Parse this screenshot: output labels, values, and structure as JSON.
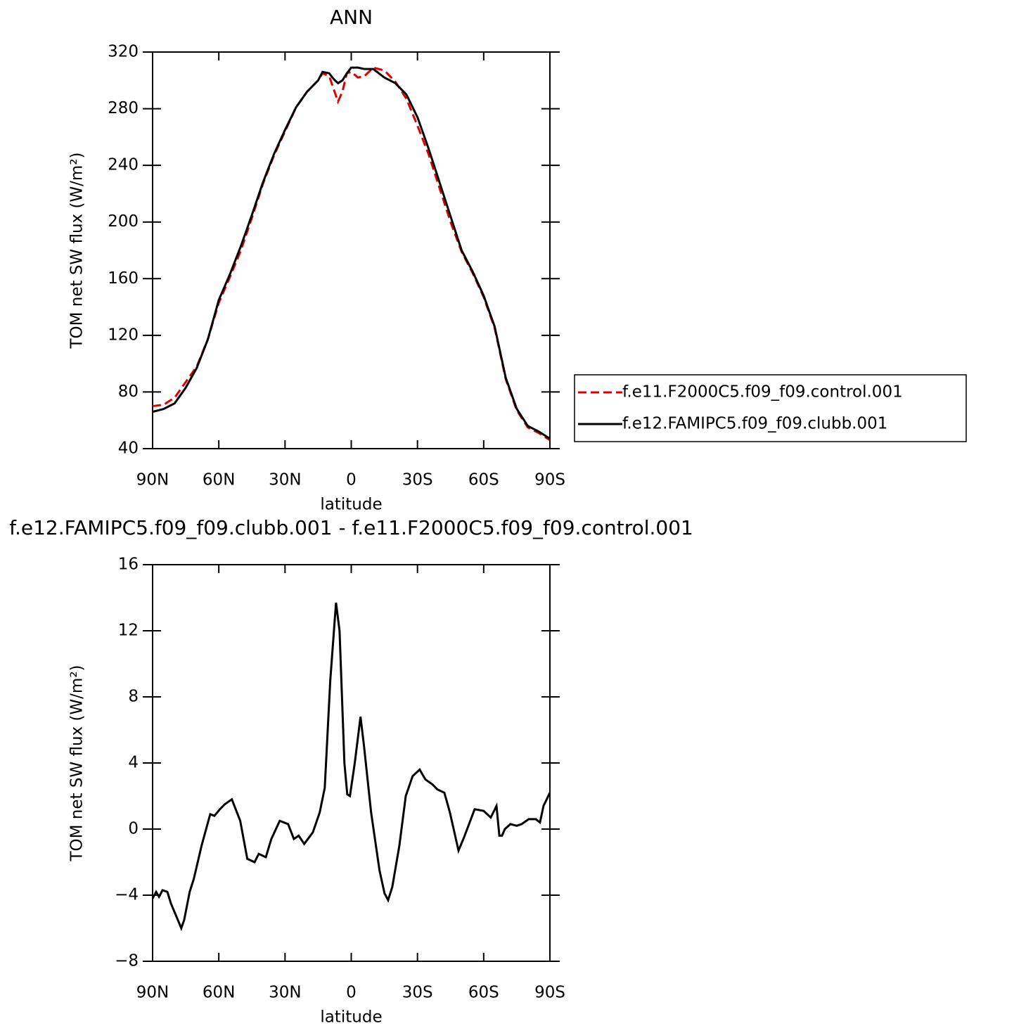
{
  "chart_data": [
    {
      "type": "line",
      "title": "ANN",
      "x_label": "latitude",
      "y_label": "TOM net SW flux (W/m²)",
      "x": [
        90,
        85,
        80,
        75,
        70,
        65,
        60,
        55,
        50,
        45,
        40,
        35,
        30,
        25,
        20,
        15,
        13,
        10,
        8,
        6,
        4,
        2,
        0,
        -3,
        -6,
        -10,
        -15,
        -20,
        -25,
        -30,
        -35,
        -40,
        -45,
        -50,
        -55,
        -60,
        -65,
        -70,
        -75,
        -80,
        -85,
        -90
      ],
      "series": [
        {
          "name": "f.e11.F2000C5.f09_f09.control.001",
          "color": "#e00000",
          "line_style": "dashed",
          "values": [
            70,
            71,
            76,
            87,
            98,
            117,
            143,
            161,
            180,
            203,
            227,
            247,
            264,
            281,
            292,
            300,
            305,
            303,
            294,
            285,
            292,
            305,
            306,
            302,
            303,
            309,
            307,
            299,
            287,
            268,
            248,
            224,
            200,
            179,
            164,
            147,
            125,
            89,
            67,
            55,
            51,
            46
          ]
        },
        {
          "name": "f.e12.FAMIPC5.f09_f09.clubb.001",
          "color": "#000000",
          "line_style": "solid",
          "values": [
            66,
            68,
            72,
            83,
            97,
            117,
            145,
            163,
            183,
            205,
            228,
            248,
            265,
            281,
            292,
            300,
            306,
            305,
            301,
            298,
            300,
            305,
            309,
            309,
            308,
            308,
            302,
            298,
            290,
            274,
            252,
            228,
            204,
            180,
            165,
            148,
            126,
            90,
            68,
            56,
            52,
            47
          ]
        }
      ],
      "xlim": [
        90,
        -90
      ],
      "xticks": [
        {
          "value": 90,
          "label": "90N"
        },
        {
          "value": 60,
          "label": "60N"
        },
        {
          "value": 30,
          "label": "30N"
        },
        0,
        {
          "value": -30,
          "label": "30S"
        },
        {
          "value": -60,
          "label": "60S"
        },
        {
          "value": -90,
          "label": "90S"
        }
      ],
      "ylim": [
        40,
        320
      ],
      "yticks": [
        40,
        80,
        120,
        160,
        200,
        240,
        280,
        320
      ],
      "legend": "right",
      "grid": false
    },
    {
      "type": "line",
      "title": "f.e12.FAMIPC5.f09_f09.clubb.001 - f.e11.F2000C5.f09_f09.control.001",
      "x_label": "latitude",
      "y_label": "TOM net SW flux (W/m²)",
      "x": [
        90.0,
        88.4,
        87.1,
        85.5,
        83.3,
        81.7,
        79.5,
        77.0,
        75.7,
        73.2,
        71.3,
        67.8,
        63.9,
        62.0,
        59.5,
        57.3,
        54.1,
        50.3,
        47.1,
        43.8,
        41.9,
        38.7,
        36.2,
        32.4,
        28.6,
        26.0,
        23.8,
        21.3,
        17.4,
        14.3,
        12.0,
        9.5,
        6.9,
        5.3,
        3.1,
        1.8,
        0.6,
        -1.6,
        -4.2,
        -5.8,
        -9.0,
        -12.8,
        -15.1,
        -16.7,
        -18.6,
        -21.8,
        -24.7,
        -27.8,
        -31.0,
        -33.6,
        -36.8,
        -39.0,
        -42.2,
        -44.7,
        -48.6,
        -51.1,
        -55.9,
        -60.0,
        -63.2,
        -65.8,
        -67.1,
        -68.3,
        -69.6,
        -72.1,
        -75.0,
        -77.2,
        -80.4,
        -83.6,
        -85.5,
        -87.1,
        -90.0
      ],
      "series": [
        {
          "color": "#000000",
          "line_style": "solid",
          "values": [
            -4.2,
            -3.8,
            -4.1,
            -3.7,
            -3.8,
            -4.5,
            -5.2,
            -6,
            -5.5,
            -3.8,
            -3,
            -1,
            0.9,
            0.8,
            1.2,
            1.5,
            1.8,
            0.5,
            -1.8,
            -2,
            -1.5,
            -1.7,
            -0.6,
            0.5,
            0.3,
            -0.6,
            -0.4,
            -0.9,
            -0.2,
            1,
            2.5,
            9,
            13.7,
            12,
            4,
            2.1,
            2,
            4,
            6.8,
            5,
            1,
            -2.5,
            -3.9,
            -4.3,
            -3.5,
            -1,
            2,
            3.2,
            3.6,
            3,
            2.7,
            2.4,
            2.2,
            1,
            -1.3,
            -0.5,
            1.2,
            1.1,
            0.7,
            1.4,
            -0.4,
            -0.4,
            0,
            0.3,
            0.2,
            0.3,
            0.6,
            0.6,
            0.4,
            1.4,
            2.2
          ]
        }
      ],
      "xlim": [
        90,
        -90
      ],
      "xticks": [
        {
          "value": 90,
          "label": "90N"
        },
        {
          "value": 60,
          "label": "60N"
        },
        {
          "value": 30,
          "label": "30N"
        },
        0,
        {
          "value": -30,
          "label": "30S"
        },
        {
          "value": -60,
          "label": "60S"
        },
        {
          "value": -90,
          "label": "90S"
        }
      ],
      "ylim": [
        -8,
        16
      ],
      "yticks": [
        {
          "value": -8,
          "label": "−8"
        },
        {
          "value": -4,
          "label": "−4"
        },
        0,
        4,
        8,
        12,
        16
      ],
      "grid": false
    }
  ]
}
